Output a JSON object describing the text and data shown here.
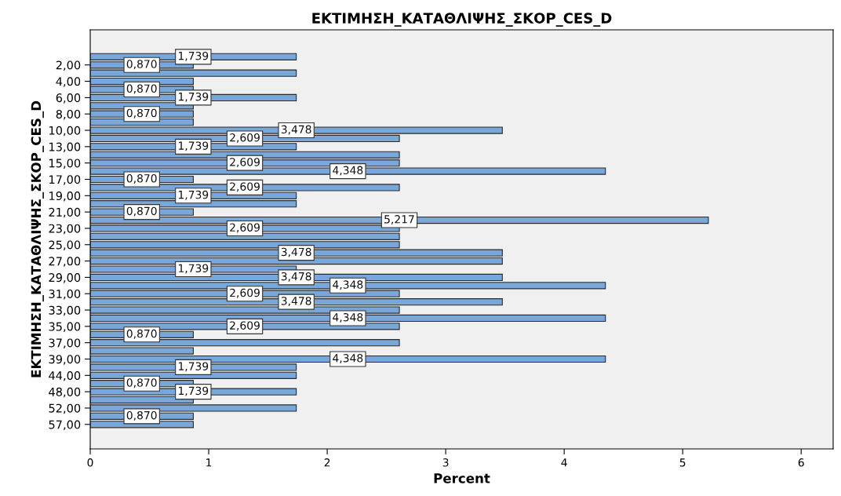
{
  "chart_data": {
    "type": "bar",
    "orientation": "horizontal",
    "title": "ΕΚΤΙΜΗΣΗ_ΚΑΤΑΘΛΙΨΗΣ_ΣΚΟΡ_CES_D",
    "xlabel": "Percent",
    "ylabel": "ΕΚΤΙΜΗΣΗ_ΚΑΤΑΘΛΙΨΗΣ_ΣΚΟΡ_CES_D",
    "categories": [
      null,
      "2,00",
      null,
      "4,00",
      null,
      "6,00",
      null,
      "8,00",
      null,
      "10,00",
      null,
      "13,00",
      null,
      "15,00",
      null,
      "17,00",
      null,
      "19,00",
      null,
      "21,00",
      null,
      "23,00",
      null,
      "25,00",
      null,
      "27,00",
      null,
      "29,00",
      null,
      "31,00",
      null,
      "33,00",
      null,
      "35,00",
      null,
      "37,00",
      null,
      "39,00",
      null,
      "44,00",
      null,
      "48,00",
      null,
      "52,00",
      null,
      "57,00"
    ],
    "values": [
      1.739,
      0.87,
      1.739,
      0.87,
      0.87,
      1.739,
      0.87,
      0.87,
      0.87,
      3.478,
      2.609,
      1.739,
      2.609,
      2.609,
      4.348,
      0.87,
      2.609,
      1.739,
      1.739,
      0.87,
      5.217,
      2.609,
      2.609,
      2.609,
      3.478,
      3.478,
      1.739,
      3.478,
      4.348,
      2.609,
      3.478,
      2.609,
      4.348,
      2.609,
      0.87,
      2.609,
      0.87,
      4.348,
      1.739,
      1.739,
      0.87,
      1.739,
      0.87,
      1.739,
      0.87,
      0.87
    ],
    "value_labels": [
      "1,739",
      "0,870",
      null,
      null,
      "0,870",
      "1,739",
      null,
      "0,870",
      null,
      "3,478",
      "2,609",
      "1,739",
      null,
      "2,609",
      "4,348",
      "0,870",
      "2,609",
      "1,739",
      null,
      "0,870",
      "5,217",
      "2,609",
      null,
      null,
      "3,478",
      null,
      "1,739",
      "3,478",
      "4,348",
      "2,609",
      "3,478",
      null,
      "4,348",
      "2,609",
      "0,870",
      null,
      null,
      "4,348",
      "1,739",
      null,
      "0,870",
      "1,739",
      null,
      null,
      "0,870",
      null
    ],
    "color": "#79a7d9",
    "xlim": [
      0,
      6.27
    ],
    "xticks": [
      0,
      1,
      2,
      3,
      4,
      5,
      6
    ],
    "grid": false
  }
}
